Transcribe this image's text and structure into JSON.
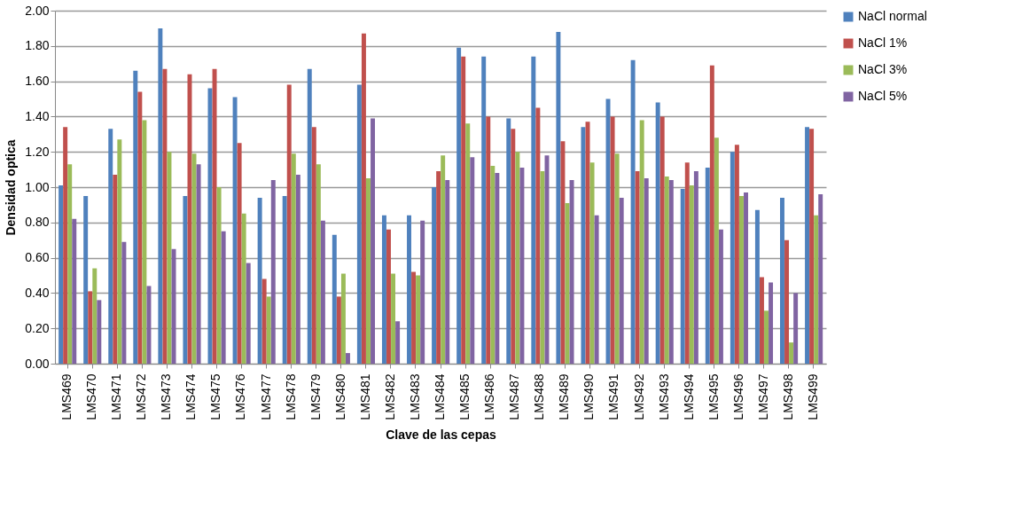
{
  "chart_data": {
    "type": "bar",
    "xlabel": "Clave de las cepas",
    "ylabel": "Densidad optica",
    "categories": [
      "LMS469",
      "LMS470",
      "LMS471",
      "LMS472",
      "LMS473",
      "LMS474",
      "LMS475",
      "LMS476",
      "LMS477",
      "LMS478",
      "LMS479",
      "LMS480",
      "LMS481",
      "LMS482",
      "LMS483",
      "LMS484",
      "LMS485",
      "LMS486",
      "LMS487",
      "LMS488",
      "LMS489",
      "LMS490",
      "LMS491",
      "LMS492",
      "LMS493",
      "LMS494",
      "LMS495",
      "LMS496",
      "LMS497",
      "LMS498",
      "LMS499"
    ],
    "series": [
      {
        "name": "NaCl normal",
        "color": "#4f81bd",
        "values": [
          1.01,
          0.95,
          1.33,
          1.66,
          1.9,
          0.95,
          1.56,
          1.51,
          0.94,
          0.95,
          1.67,
          0.73,
          1.58,
          0.84,
          0.84,
          1.0,
          1.79,
          1.74,
          1.39,
          1.74,
          1.88,
          1.34,
          1.5,
          1.72,
          1.48,
          0.99,
          1.11,
          1.2,
          0.87,
          0.94,
          1.34
        ]
      },
      {
        "name": "NaCl 1%",
        "color": "#c0504d",
        "values": [
          1.34,
          0.41,
          1.07,
          1.54,
          1.67,
          1.64,
          1.67,
          1.25,
          0.48,
          1.58,
          1.34,
          0.38,
          1.87,
          0.76,
          0.52,
          1.09,
          1.74,
          1.4,
          1.33,
          1.45,
          1.26,
          1.37,
          1.4,
          1.09,
          1.4,
          1.14,
          1.69,
          1.24,
          0.49,
          0.7,
          1.33
        ]
      },
      {
        "name": "NaCl 3%",
        "color": "#9bbb59",
        "values": [
          1.13,
          0.54,
          1.27,
          1.38,
          1.2,
          1.19,
          1.0,
          0.85,
          0.38,
          1.19,
          1.13,
          0.51,
          1.05,
          0.51,
          0.5,
          1.18,
          1.36,
          1.12,
          1.2,
          1.09,
          0.91,
          1.14,
          1.19,
          1.38,
          1.06,
          1.01,
          1.28,
          0.95,
          0.3,
          0.12,
          0.84
        ]
      },
      {
        "name": "NaCl 5%",
        "color": "#8064a2",
        "values": [
          0.82,
          0.36,
          0.69,
          0.44,
          0.65,
          1.13,
          0.75,
          0.57,
          1.04,
          1.07,
          0.81,
          0.06,
          1.39,
          0.24,
          0.81,
          1.04,
          1.17,
          1.08,
          1.11,
          1.18,
          1.04,
          0.84,
          0.94,
          1.05,
          1.04,
          1.09,
          0.76,
          0.97,
          0.46,
          0.4,
          0.96
        ]
      }
    ],
    "ylim": [
      0,
      2
    ],
    "yticks": [
      {
        "value": 0,
        "label": "0.00"
      },
      {
        "value": 0.2,
        "label": "0.20"
      },
      {
        "value": 0.4,
        "label": "0.40"
      },
      {
        "value": 0.6,
        "label": "0.60"
      },
      {
        "value": 0.8,
        "label": "0.80"
      },
      {
        "value": 1,
        "label": "1.00"
      },
      {
        "value": 1.2,
        "label": "1.20"
      },
      {
        "value": 1.4,
        "label": "1.40"
      },
      {
        "value": 1.6,
        "label": "1.60"
      },
      {
        "value": 1.8,
        "label": "1.80"
      },
      {
        "value": 2,
        "label": "2.00"
      }
    ],
    "grid": "y",
    "legend": "right"
  }
}
